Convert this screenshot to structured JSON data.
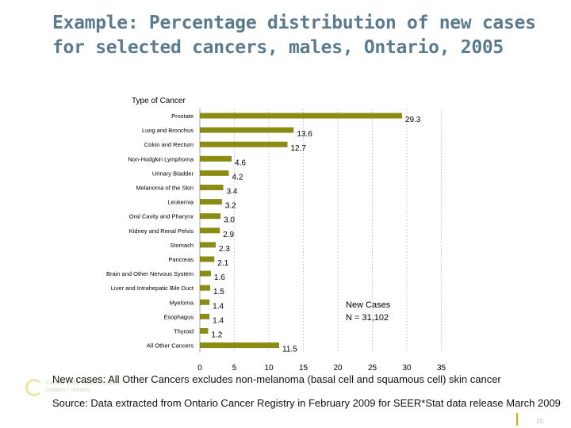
{
  "slide": {
    "title": "Example: Percentage distribution of new cases for selected cancers, males, Ontario, 2005",
    "footnote": "New cases: All Other Cancers excludes non-melanoma (basal cell and squamous cell) skin cancer",
    "source": "Source: Data extracted from Ontario Cancer Registry in February 2009 for SEER*Stat data release March 2009",
    "page_number": "15",
    "logo_text_line1": "cancer care | action cancer",
    "logo_text_line2": "ontario     | ontario"
  },
  "chart_data": {
    "type": "bar",
    "orientation": "horizontal",
    "category_axis_title": "Type of Cancer",
    "annotation_line1": "New Cases",
    "annotation_line2": "N = 31,102",
    "categories": [
      "Prostate",
      "Lung and Bronchus",
      "Colon and Rectum",
      "Non-Hodgkin Lymphoma",
      "Urinary Bladder",
      "Melanoma of the Skin",
      "Leukemia",
      "Oral Cavity and Pharynx",
      "Kidney and Renal Pelvis",
      "Stomach",
      "Pancreas",
      "Brain and Other Nervous System",
      "Liver and Intrahepatic Bile Duct",
      "Myeloma",
      "Esophagus",
      "Thyroid",
      "All Other Cancers"
    ],
    "values": [
      29.3,
      13.6,
      12.7,
      4.6,
      4.2,
      3.4,
      3.2,
      3.0,
      2.9,
      2.3,
      2.1,
      1.6,
      1.5,
      1.4,
      1.4,
      1.2,
      11.5
    ],
    "value_labels": [
      "29.3",
      "13.6",
      "12.7",
      "4.6",
      "4.2",
      "3.4",
      "3.2",
      "3.0",
      "2.9",
      "2.3",
      "2.1",
      "1.6",
      "1.5",
      "1.4",
      "1.4",
      "1.2",
      "11.5"
    ],
    "xlim": [
      0,
      35
    ],
    "x_ticks": [
      0,
      5,
      10,
      15,
      20,
      25,
      30,
      35
    ],
    "gridlines": "vertical dotted",
    "bar_color": "#8c8c14"
  }
}
